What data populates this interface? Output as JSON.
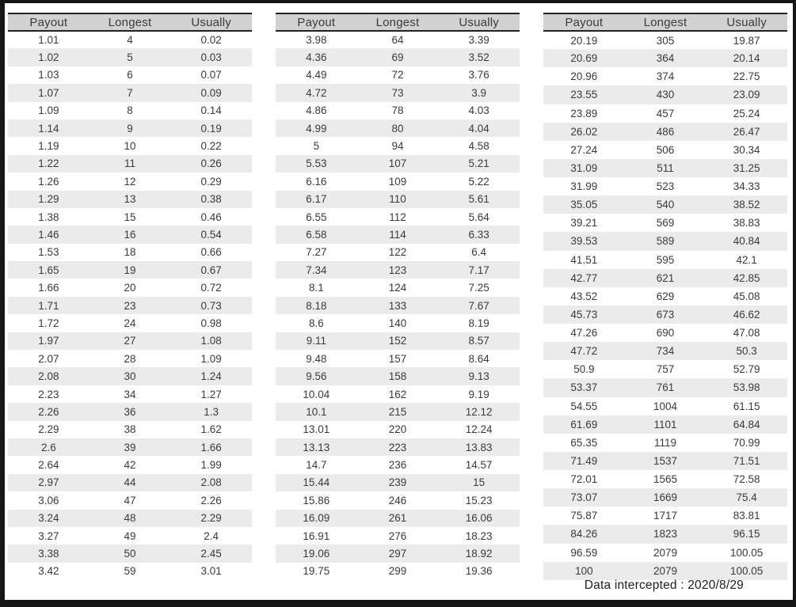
{
  "columns": [
    "Payout",
    "Longest",
    "Usually"
  ],
  "footer": {
    "text": "Data intercepted : 2020/8/29"
  },
  "colors": {
    "header_bg": "#d2d2d2",
    "stripe_bg": "#ebebeb",
    "header_line": "#222222",
    "text": "#3a3a3a",
    "frame": "#161616",
    "page_bg": "#ffffff"
  },
  "tables": [
    {
      "name": "payout-table-1",
      "rows": [
        [
          "1.01",
          "4",
          "0.02"
        ],
        [
          "1.02",
          "5",
          "0.03"
        ],
        [
          "1.03",
          "6",
          "0.07"
        ],
        [
          "1.07",
          "7",
          "0.09"
        ],
        [
          "1.09",
          "8",
          "0.14"
        ],
        [
          "1.14",
          "9",
          "0.19"
        ],
        [
          "1.19",
          "10",
          "0.22"
        ],
        [
          "1.22",
          "11",
          "0.26"
        ],
        [
          "1.26",
          "12",
          "0.29"
        ],
        [
          "1.29",
          "13",
          "0.38"
        ],
        [
          "1.38",
          "15",
          "0.46"
        ],
        [
          "1.46",
          "16",
          "0.54"
        ],
        [
          "1.53",
          "18",
          "0.66"
        ],
        [
          "1.65",
          "19",
          "0.67"
        ],
        [
          "1.66",
          "20",
          "0.72"
        ],
        [
          "1.71",
          "23",
          "0.73"
        ],
        [
          "1.72",
          "24",
          "0.98"
        ],
        [
          "1.97",
          "27",
          "1.08"
        ],
        [
          "2.07",
          "28",
          "1.09"
        ],
        [
          "2.08",
          "30",
          "1.24"
        ],
        [
          "2.23",
          "34",
          "1.27"
        ],
        [
          "2.26",
          "36",
          "1.3"
        ],
        [
          "2.29",
          "38",
          "1.62"
        ],
        [
          "2.6",
          "39",
          "1.66"
        ],
        [
          "2.64",
          "42",
          "1.99"
        ],
        [
          "2.97",
          "44",
          "2.08"
        ],
        [
          "3.06",
          "47",
          "2.26"
        ],
        [
          "3.24",
          "48",
          "2.29"
        ],
        [
          "3.27",
          "49",
          "2.4"
        ],
        [
          "3.38",
          "50",
          "2.45"
        ],
        [
          "3.42",
          "59",
          "3.01"
        ]
      ]
    },
    {
      "name": "payout-table-2",
      "rows": [
        [
          "3.98",
          "64",
          "3.39"
        ],
        [
          "4.36",
          "69",
          "3.52"
        ],
        [
          "4.49",
          "72",
          "3.76"
        ],
        [
          "4.72",
          "73",
          "3.9"
        ],
        [
          "4.86",
          "78",
          "4.03"
        ],
        [
          "4.99",
          "80",
          "4.04"
        ],
        [
          "5",
          "94",
          "4.58"
        ],
        [
          "5.53",
          "107",
          "5.21"
        ],
        [
          "6.16",
          "109",
          "5.22"
        ],
        [
          "6.17",
          "110",
          "5.61"
        ],
        [
          "6.55",
          "112",
          "5.64"
        ],
        [
          "6.58",
          "114",
          "6.33"
        ],
        [
          "7.27",
          "122",
          "6.4"
        ],
        [
          "7.34",
          "123",
          "7.17"
        ],
        [
          "8.1",
          "124",
          "7.25"
        ],
        [
          "8.18",
          "133",
          "7.67"
        ],
        [
          "8.6",
          "140",
          "8.19"
        ],
        [
          "9.11",
          "152",
          "8.57"
        ],
        [
          "9.48",
          "157",
          "8.64"
        ],
        [
          "9.56",
          "158",
          "9.13"
        ],
        [
          "10.04",
          "162",
          "9.19"
        ],
        [
          "10.1",
          "215",
          "12.12"
        ],
        [
          "13.01",
          "220",
          "12.24"
        ],
        [
          "13.13",
          "223",
          "13.83"
        ],
        [
          "14.7",
          "236",
          "14.57"
        ],
        [
          "15.44",
          "239",
          "15"
        ],
        [
          "15.86",
          "246",
          "15.23"
        ],
        [
          "16.09",
          "261",
          "16.06"
        ],
        [
          "16.91",
          "276",
          "18.23"
        ],
        [
          "19.06",
          "297",
          "18.92"
        ],
        [
          "19.75",
          "299",
          "19.36"
        ]
      ]
    },
    {
      "name": "payout-table-3",
      "rows": [
        [
          "20.19",
          "305",
          "19.87"
        ],
        [
          "20.69",
          "364",
          "20.14"
        ],
        [
          "20.96",
          "374",
          "22.75"
        ],
        [
          "23.55",
          "430",
          "23.09"
        ],
        [
          "23.89",
          "457",
          "25.24"
        ],
        [
          "26.02",
          "486",
          "26.47"
        ],
        [
          "27.24",
          "506",
          "30.34"
        ],
        [
          "31.09",
          "511",
          "31.25"
        ],
        [
          "31.99",
          "523",
          "34.33"
        ],
        [
          "35.05",
          "540",
          "38.52"
        ],
        [
          "39.21",
          "569",
          "38.83"
        ],
        [
          "39.53",
          "589",
          "40.84"
        ],
        [
          "41.51",
          "595",
          "42.1"
        ],
        [
          "42.77",
          "621",
          "42.85"
        ],
        [
          "43.52",
          "629",
          "45.08"
        ],
        [
          "45.73",
          "673",
          "46.62"
        ],
        [
          "47.26",
          "690",
          "47.08"
        ],
        [
          "47.72",
          "734",
          "50.3"
        ],
        [
          "50.9",
          "757",
          "52.79"
        ],
        [
          "53.37",
          "761",
          "53.98"
        ],
        [
          "54.55",
          "1004",
          "61.15"
        ],
        [
          "61.69",
          "1101",
          "64.84"
        ],
        [
          "65.35",
          "1119",
          "70.99"
        ],
        [
          "71.49",
          "1537",
          "71.51"
        ],
        [
          "72.01",
          "1565",
          "72.58"
        ],
        [
          "73.07",
          "1669",
          "75.4"
        ],
        [
          "75.87",
          "1717",
          "83.81"
        ],
        [
          "84.26",
          "1823",
          "96.15"
        ],
        [
          "96.59",
          "2079",
          "100.05"
        ],
        [
          "100",
          "2079",
          "100.05"
        ]
      ]
    }
  ]
}
